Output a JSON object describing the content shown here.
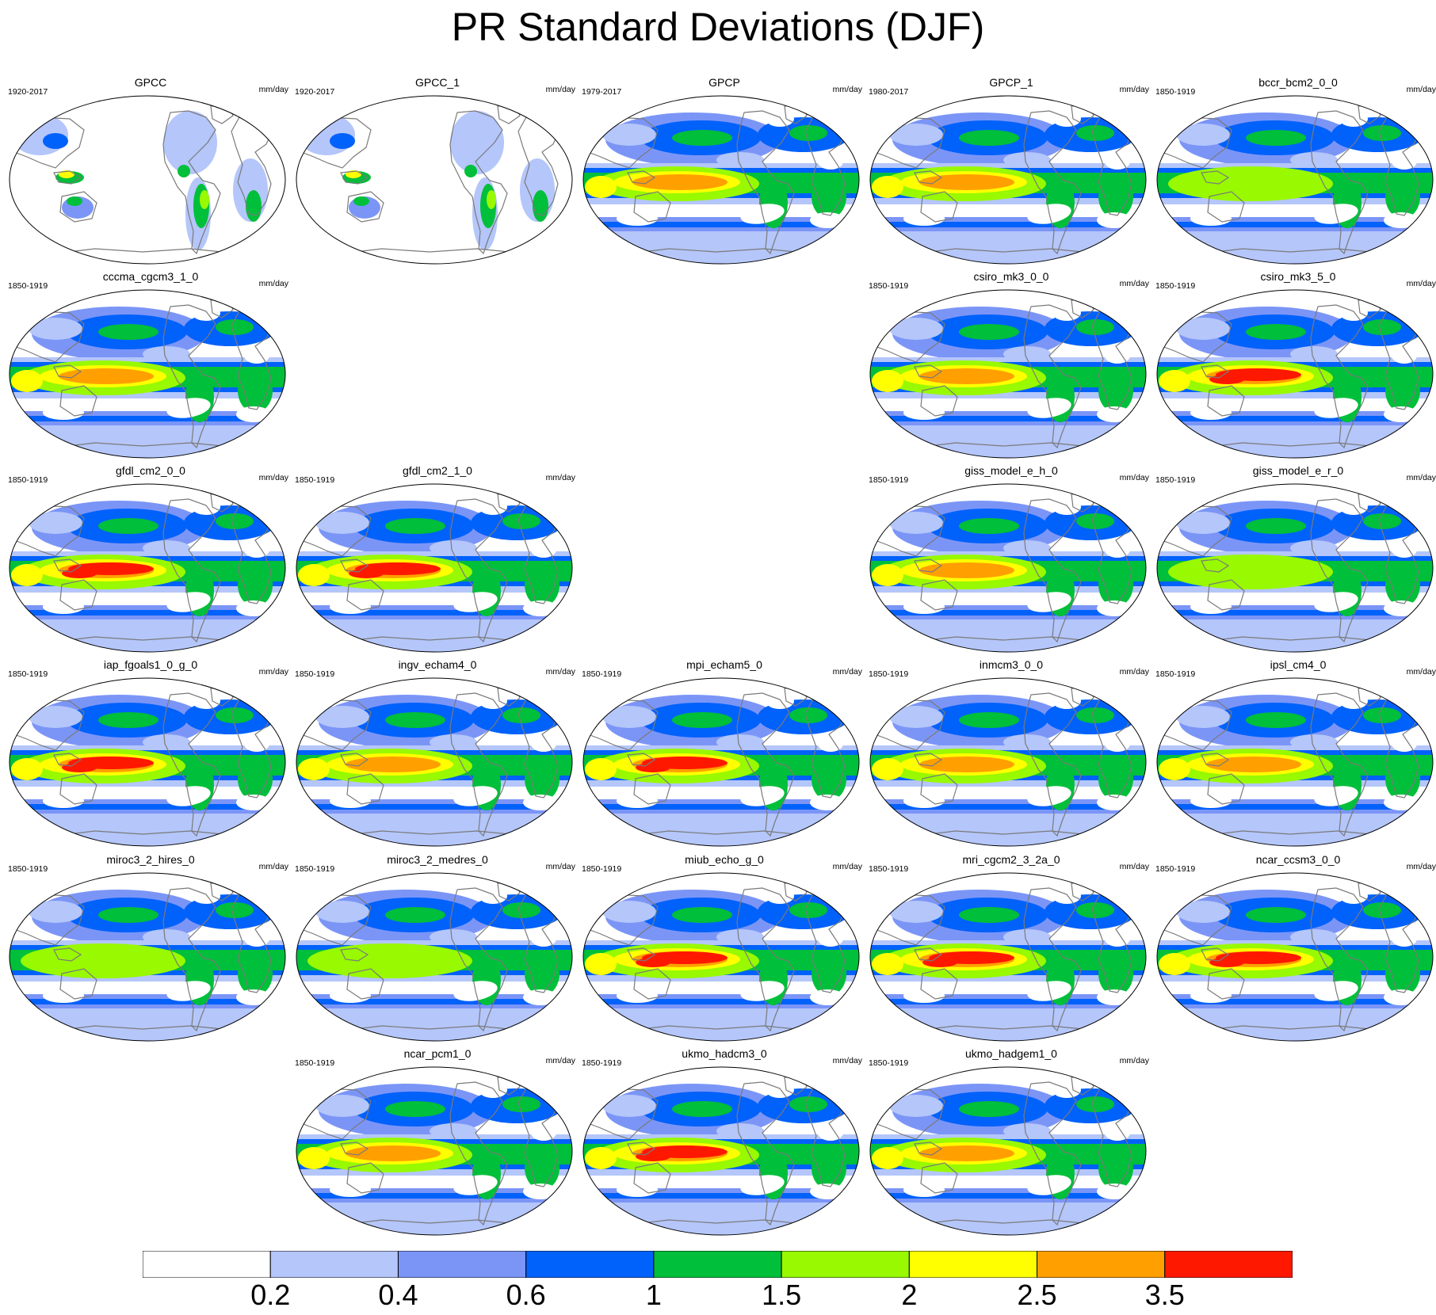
{
  "title": "PR Standard Deviations (DJF)",
  "units": "mm/day",
  "colorbar": {
    "colors": [
      "#ffffff",
      "#b4c6fa",
      "#7b95f7",
      "#0061fb",
      "#00bf3a",
      "#98f900",
      "#ffff00",
      "#ffa000",
      "#ff1800"
    ],
    "labels": [
      "0.2",
      "0.4",
      "0.6",
      "1",
      "1.5",
      "2",
      "2.5",
      "3.5"
    ]
  },
  "panels": [
    {
      "name": "GPCC",
      "years": "1920-2017",
      "row": 0,
      "col": 0,
      "land_only": true,
      "style": 0
    },
    {
      "name": "GPCC_1",
      "years": "1920-2017",
      "row": 0,
      "col": 1,
      "land_only": true,
      "style": 0
    },
    {
      "name": "GPCP",
      "years": "1979-2017",
      "row": 0,
      "col": 2,
      "land_only": false,
      "style": 2
    },
    {
      "name": "GPCP_1",
      "years": "1980-2017",
      "row": 0,
      "col": 3,
      "land_only": false,
      "style": 2
    },
    {
      "name": "bccr_bcm2_0_0",
      "years": "1850-1919",
      "row": 0,
      "col": 4,
      "land_only": false,
      "style": 1
    },
    {
      "name": "cccma_cgcm3_1_0",
      "years": "1850-1919",
      "row": 1,
      "col": 0,
      "land_only": false,
      "style": 2
    },
    {
      "name": "csiro_mk3_0_0",
      "years": "1850-1919",
      "row": 1,
      "col": 3,
      "land_only": false,
      "style": 2
    },
    {
      "name": "csiro_mk3_5_0",
      "years": "1850-1919",
      "row": 1,
      "col": 4,
      "land_only": false,
      "style": 3
    },
    {
      "name": "gfdl_cm2_0_0",
      "years": "1850-1919",
      "row": 2,
      "col": 0,
      "land_only": false,
      "style": 3
    },
    {
      "name": "gfdl_cm2_1_0",
      "years": "1850-1919",
      "row": 2,
      "col": 1,
      "land_only": false,
      "style": 3
    },
    {
      "name": "giss_model_e_h_0",
      "years": "1850-1919",
      "row": 2,
      "col": 3,
      "land_only": false,
      "style": 2
    },
    {
      "name": "giss_model_e_r_0",
      "years": "1850-1919",
      "row": 2,
      "col": 4,
      "land_only": false,
      "style": 1
    },
    {
      "name": "iap_fgoals1_0_g_0",
      "years": "1850-1919",
      "row": 3,
      "col": 0,
      "land_only": false,
      "style": 3
    },
    {
      "name": "ingv_echam4_0",
      "years": "1850-1919",
      "row": 3,
      "col": 1,
      "land_only": false,
      "style": 2
    },
    {
      "name": "mpi_echam5_0",
      "years": "1850-1919",
      "row": 3,
      "col": 2,
      "land_only": false,
      "style": 3
    },
    {
      "name": "inmcm3_0_0",
      "years": "1850-1919",
      "row": 3,
      "col": 3,
      "land_only": false,
      "style": 2
    },
    {
      "name": "ipsl_cm4_0",
      "years": "1850-1919",
      "row": 3,
      "col": 4,
      "land_only": false,
      "style": 2
    },
    {
      "name": "miroc3_2_hires_0",
      "years": "1850-1919",
      "row": 4,
      "col": 0,
      "land_only": false,
      "style": 1
    },
    {
      "name": "miroc3_2_medres_0",
      "years": "1850-1919",
      "row": 4,
      "col": 1,
      "land_only": false,
      "style": 1
    },
    {
      "name": "miub_echo_g_0",
      "years": "1850-1919",
      "row": 4,
      "col": 2,
      "land_only": false,
      "style": 3
    },
    {
      "name": "mri_cgcm2_3_2a_0",
      "years": "1850-1919",
      "row": 4,
      "col": 3,
      "land_only": false,
      "style": 3
    },
    {
      "name": "ncar_ccsm3_0_0",
      "years": "1850-1919",
      "row": 4,
      "col": 4,
      "land_only": false,
      "style": 3
    },
    {
      "name": "ncar_pcm1_0",
      "years": "1850-1919",
      "row": 5,
      "col": 1,
      "land_only": false,
      "style": 2
    },
    {
      "name": "ukmo_hadcm3_0",
      "years": "1850-1919",
      "row": 5,
      "col": 2,
      "land_only": false,
      "style": 3
    },
    {
      "name": "ukmo_hadgem1_0",
      "years": "1850-1919",
      "row": 5,
      "col": 3,
      "land_only": false,
      "style": 2
    }
  ]
}
